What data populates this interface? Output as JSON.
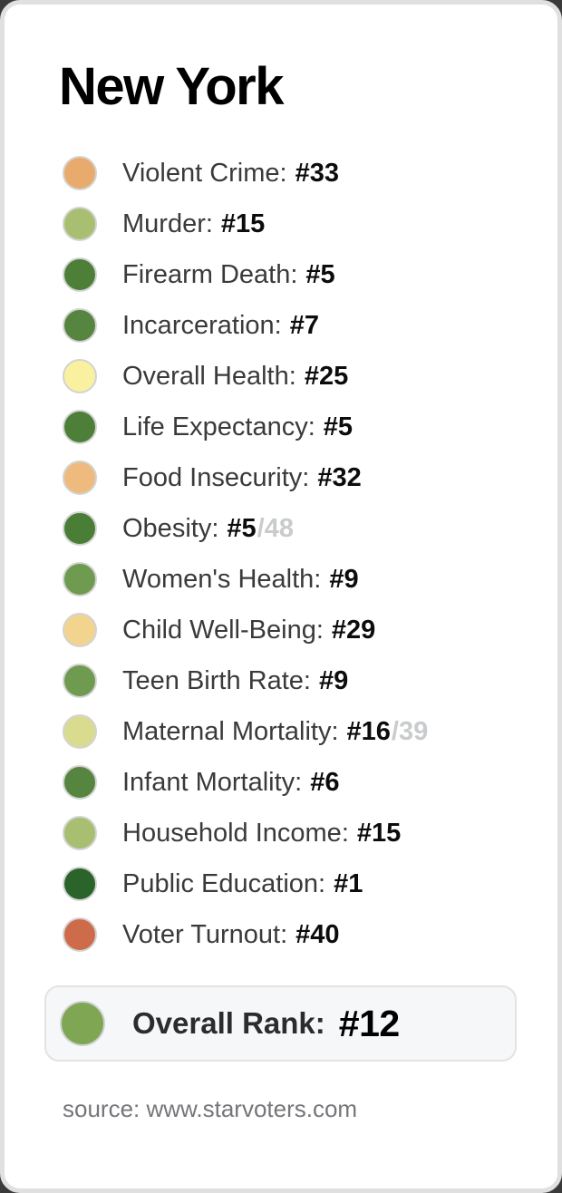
{
  "card": {
    "title": "New York",
    "rows": [
      {
        "label": "Violent Crime:",
        "rank": "#33",
        "color": "#e9ab6d"
      },
      {
        "label": "Murder:",
        "rank": "#15",
        "color": "#a8bf72"
      },
      {
        "label": "Firearm Death:",
        "rank": "#5",
        "color": "#4d7f38"
      },
      {
        "label": "Incarceration:",
        "rank": "#7",
        "color": "#568540"
      },
      {
        "label": "Overall Health:",
        "rank": "#25",
        "color": "#f9f0a0"
      },
      {
        "label": "Life Expectancy:",
        "rank": "#5",
        "color": "#4d7f38"
      },
      {
        "label": "Food Insecurity:",
        "rank": "#32",
        "color": "#efba7d"
      },
      {
        "label": "Obesity:",
        "rank": "#5",
        "suffix": "/48",
        "color": "#4a7d36"
      },
      {
        "label": "Women's Health:",
        "rank": "#9",
        "color": "#6f9b51"
      },
      {
        "label": "Child Well-Being:",
        "rank": "#29",
        "color": "#f3d48e"
      },
      {
        "label": "Teen Birth Rate:",
        "rank": "#9",
        "color": "#6f9b51"
      },
      {
        "label": "Maternal Mortality:",
        "rank": "#16",
        "suffix": "/39",
        "color": "#d9dc8e"
      },
      {
        "label": "Infant Mortality:",
        "rank": "#6",
        "color": "#568540"
      },
      {
        "label": "Household Income:",
        "rank": "#15",
        "color": "#a8bf72"
      },
      {
        "label": "Public Education:",
        "rank": "#1",
        "color": "#2a642a"
      },
      {
        "label": "Voter Turnout:",
        "rank": "#40",
        "color": "#cd6b4b"
      }
    ],
    "overall": {
      "label": "Overall Rank:",
      "rank": "#12",
      "color": "#7fa653"
    },
    "source": "source: www.starvoters.com"
  },
  "colors": {
    "card_background": "#ffffff",
    "card_border": "#e0e0e0",
    "outside_background": "#3a3a3a",
    "label_text": "#3a3a3c",
    "rank_text": "#0c0c0c",
    "denominator_text": "#c9cbcd",
    "overall_box_background": "#f6f7f8",
    "overall_box_border": "#e3e3e5",
    "source_text": "#76767a"
  },
  "chart_data": {
    "type": "table",
    "title": "New York",
    "categories": [
      "Violent Crime",
      "Murder",
      "Firearm Death",
      "Incarceration",
      "Overall Health",
      "Life Expectancy",
      "Food Insecurity",
      "Obesity",
      "Women's Health",
      "Child Well-Being",
      "Teen Birth Rate",
      "Maternal Mortality",
      "Infant Mortality",
      "Household Income",
      "Public Education",
      "Voter Turnout"
    ],
    "values": [
      33,
      15,
      5,
      7,
      25,
      5,
      32,
      5,
      9,
      29,
      9,
      16,
      6,
      15,
      1,
      40
    ],
    "denominators": {
      "Obesity": 48,
      "Maternal Mortality": 39
    },
    "overall_rank": 12,
    "source": "source: www.starvoters.com",
    "dot_colors": [
      "#e9ab6d",
      "#a8bf72",
      "#4d7f38",
      "#568540",
      "#f9f0a0",
      "#4d7f38",
      "#efba7d",
      "#4a7d36",
      "#6f9b51",
      "#f3d48e",
      "#6f9b51",
      "#d9dc8e",
      "#568540",
      "#a8bf72",
      "#2a642a",
      "#cd6b4b"
    ],
    "overall_dot_color": "#7fa653"
  }
}
